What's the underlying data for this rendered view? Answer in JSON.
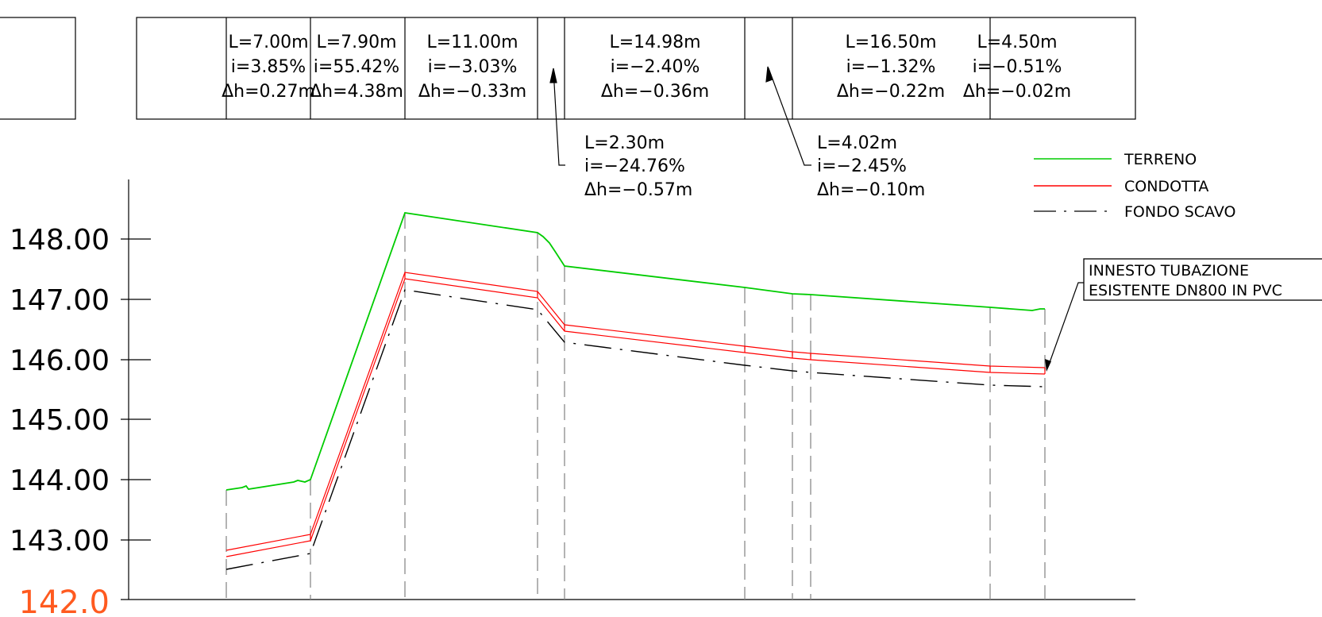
{
  "y_axis": {
    "ticks": [
      "148.00",
      "147.00",
      "146.00",
      "145.00",
      "144.00",
      "143.00"
    ],
    "base_label": "142.0",
    "base_color": "#ff5a1f"
  },
  "segments": [
    {
      "L": "L=7.00m",
      "i": "i=3.85%",
      "dh": "Δh=0.27m"
    },
    {
      "L": "L=7.90m",
      "i": "i=55.42%",
      "dh": "Δh=4.38m"
    },
    {
      "L": "L=11.00m",
      "i": "i=−3.03%",
      "dh": "Δh=−0.33m"
    },
    {
      "L": "L=14.98m",
      "i": "i=−2.40%",
      "dh": "Δh=−0.36m"
    },
    {
      "L": "L=16.50m",
      "i": "i=−1.32%",
      "dh": "Δh=−0.22m"
    },
    {
      "L": "L=4.50m",
      "i": "i=−0.51%",
      "dh": "Δh=−0.02m"
    }
  ],
  "callouts": [
    {
      "L": "L=2.30m",
      "i": "i=−24.76%",
      "dh": "Δh=−0.57m"
    },
    {
      "L": "L=4.02m",
      "i": "i=−2.45%",
      "dh": "Δh=−0.10m"
    }
  ],
  "legend": [
    {
      "label": "TERRENO",
      "color": "#00cc00"
    },
    {
      "label": "CONDOTTA",
      "color": "#ff0000"
    },
    {
      "label": "FONDO SCAVO",
      "color": "#000000"
    }
  ],
  "note": {
    "line1": "INNESTO TUBAZIONE",
    "line2": "ESISTENTE DN800 IN PVC"
  }
}
